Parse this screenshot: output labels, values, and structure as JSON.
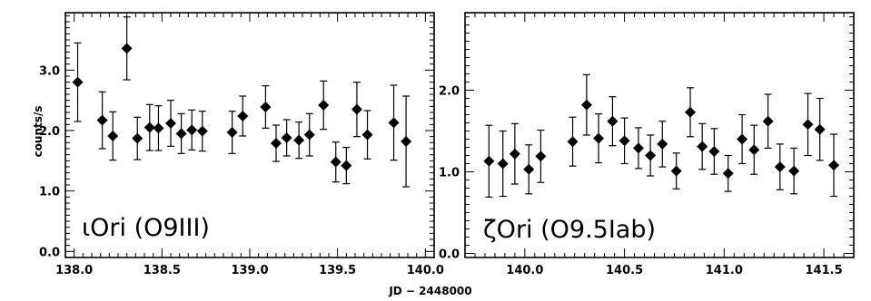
{
  "axes": {
    "ylabel": "counts/s",
    "xlabel": "JD − 2448000"
  },
  "chart_data": [
    {
      "type": "scatter",
      "annotation": "ιOri  (O9III)",
      "xlim": [
        137.95,
        140.05
      ],
      "ylim": [
        -0.1,
        3.95
      ],
      "xticks": [
        138.0,
        138.5,
        139.0,
        139.5,
        140.0
      ],
      "xticklabels": [
        "138.0",
        "138.5",
        "139.0",
        "139.5",
        "140.0"
      ],
      "yticks": [
        0.0,
        1.0,
        2.0,
        3.0
      ],
      "yticklabels": [
        "0.0",
        "1.0",
        "2.0",
        "3.0"
      ],
      "points": [
        {
          "x": 138.02,
          "y": 2.8,
          "err": 0.65
        },
        {
          "x": 138.16,
          "y": 2.17,
          "err": 0.47
        },
        {
          "x": 138.22,
          "y": 1.91,
          "err": 0.4
        },
        {
          "x": 138.3,
          "y": 3.36,
          "err": 0.52
        },
        {
          "x": 138.36,
          "y": 1.87,
          "err": 0.35
        },
        {
          "x": 138.43,
          "y": 2.05,
          "err": 0.38
        },
        {
          "x": 138.48,
          "y": 2.04,
          "err": 0.37
        },
        {
          "x": 138.55,
          "y": 2.12,
          "err": 0.38
        },
        {
          "x": 138.61,
          "y": 1.95,
          "err": 0.33
        },
        {
          "x": 138.67,
          "y": 2.01,
          "err": 0.33
        },
        {
          "x": 138.73,
          "y": 1.99,
          "err": 0.33
        },
        {
          "x": 138.9,
          "y": 1.97,
          "err": 0.35
        },
        {
          "x": 138.96,
          "y": 2.24,
          "err": 0.33
        },
        {
          "x": 139.09,
          "y": 2.39,
          "err": 0.35
        },
        {
          "x": 139.15,
          "y": 1.79,
          "err": 0.3
        },
        {
          "x": 139.21,
          "y": 1.88,
          "err": 0.3
        },
        {
          "x": 139.28,
          "y": 1.84,
          "err": 0.3
        },
        {
          "x": 139.34,
          "y": 1.93,
          "err": 0.35
        },
        {
          "x": 139.42,
          "y": 2.42,
          "err": 0.4
        },
        {
          "x": 139.49,
          "y": 1.48,
          "err": 0.33
        },
        {
          "x": 139.55,
          "y": 1.42,
          "err": 0.3
        },
        {
          "x": 139.61,
          "y": 2.35,
          "err": 0.45
        },
        {
          "x": 139.67,
          "y": 1.93,
          "err": 0.4
        },
        {
          "x": 139.82,
          "y": 2.13,
          "err": 0.62
        },
        {
          "x": 139.89,
          "y": 1.82,
          "err": 0.75
        }
      ]
    },
    {
      "type": "scatter",
      "annotation": "ζOri  (O9.5Iab)",
      "xlim": [
        139.7,
        141.65
      ],
      "ylim": [
        -0.05,
        2.95
      ],
      "xticks": [
        140.0,
        140.5,
        141.0,
        141.5
      ],
      "xticklabels": [
        "140.0",
        "140.5",
        "141.0",
        "141.5"
      ],
      "yticks": [
        0.0,
        1.0,
        2.0
      ],
      "yticklabels": [
        "0.0",
        "1.0",
        "2.0"
      ],
      "points": [
        {
          "x": 139.82,
          "y": 1.13,
          "err": 0.44
        },
        {
          "x": 139.89,
          "y": 1.1,
          "err": 0.4
        },
        {
          "x": 139.95,
          "y": 1.22,
          "err": 0.37
        },
        {
          "x": 140.02,
          "y": 1.03,
          "err": 0.3
        },
        {
          "x": 140.08,
          "y": 1.19,
          "err": 0.32
        },
        {
          "x": 140.24,
          "y": 1.37,
          "err": 0.3
        },
        {
          "x": 140.31,
          "y": 1.82,
          "err": 0.37
        },
        {
          "x": 140.37,
          "y": 1.41,
          "err": 0.3
        },
        {
          "x": 140.44,
          "y": 1.62,
          "err": 0.3
        },
        {
          "x": 140.5,
          "y": 1.38,
          "err": 0.28
        },
        {
          "x": 140.57,
          "y": 1.29,
          "err": 0.25
        },
        {
          "x": 140.63,
          "y": 1.2,
          "err": 0.25
        },
        {
          "x": 140.69,
          "y": 1.34,
          "err": 0.28
        },
        {
          "x": 140.76,
          "y": 1.01,
          "err": 0.22
        },
        {
          "x": 140.83,
          "y": 1.73,
          "err": 0.3
        },
        {
          "x": 140.89,
          "y": 1.31,
          "err": 0.28
        },
        {
          "x": 140.95,
          "y": 1.25,
          "err": 0.28
        },
        {
          "x": 141.02,
          "y": 0.98,
          "err": 0.22
        },
        {
          "x": 141.09,
          "y": 1.4,
          "err": 0.3
        },
        {
          "x": 141.15,
          "y": 1.27,
          "err": 0.3
        },
        {
          "x": 141.22,
          "y": 1.62,
          "err": 0.33
        },
        {
          "x": 141.28,
          "y": 1.06,
          "err": 0.28
        },
        {
          "x": 141.35,
          "y": 1.01,
          "err": 0.28
        },
        {
          "x": 141.42,
          "y": 1.58,
          "err": 0.38
        },
        {
          "x": 141.48,
          "y": 1.52,
          "err": 0.38
        },
        {
          "x": 141.55,
          "y": 1.08,
          "err": 0.38
        }
      ]
    }
  ]
}
